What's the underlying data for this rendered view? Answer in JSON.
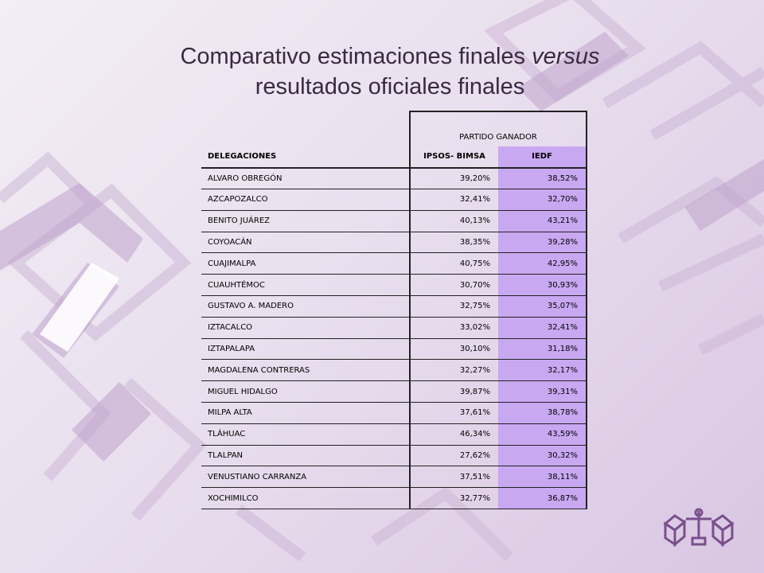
{
  "slide": {
    "title_part1": "Comparativo estimaciones finales",
    "title_italic": "versus",
    "title_part2": "resultados oficiales finales"
  },
  "table": {
    "group_header": "PARTIDO GANADOR",
    "columns": [
      "DELEGACIONES",
      "IPSOS- BIMSA",
      "IEDF"
    ],
    "rows": [
      [
        "ALVARO OBREGÓN",
        "39,20%",
        "38,52%"
      ],
      [
        "AZCAPOZALCO",
        "32,41%",
        "32,70%"
      ],
      [
        "BENITO JUÁREZ",
        "40,13%",
        "43,21%"
      ],
      [
        "COYOACÁN",
        "38,35%",
        "39,28%"
      ],
      [
        "CUAJIMALPA",
        "40,75%",
        "42,95%"
      ],
      [
        "CUAUHTÉMOC",
        "30,70%",
        "30,93%"
      ],
      [
        "GUSTAVO A. MADERO",
        "32,75%",
        "35,07%"
      ],
      [
        "IZTACALCO",
        "33,02%",
        "32,41%"
      ],
      [
        "IZTAPALAPA",
        "30,10%",
        "31,18%"
      ],
      [
        "MAGDALENA CONTRERAS",
        "32,27%",
        "32,17%"
      ],
      [
        "MIGUEL HIDALGO",
        "39,87%",
        "39,31%"
      ],
      [
        "MILPA ALTA",
        "37,61%",
        "38,78%"
      ],
      [
        "TLÁHUAC",
        "46,34%",
        "43,59%"
      ],
      [
        "TLALPAN",
        "27,62%",
        "30,32%"
      ],
      [
        "VENUSTIANO CARRANZA",
        "37,51%",
        "38,11%"
      ],
      [
        "XOCHIMILCO",
        "32,77%",
        "36,87%"
      ]
    ]
  },
  "colors": {
    "iedf_column": "#c9a8f2",
    "background": "#e9dfee",
    "deco_shape": "#b99fc4",
    "logo": "#7a4f8c"
  },
  "icons": [
    "ballot-boxes-logo-icon"
  ]
}
